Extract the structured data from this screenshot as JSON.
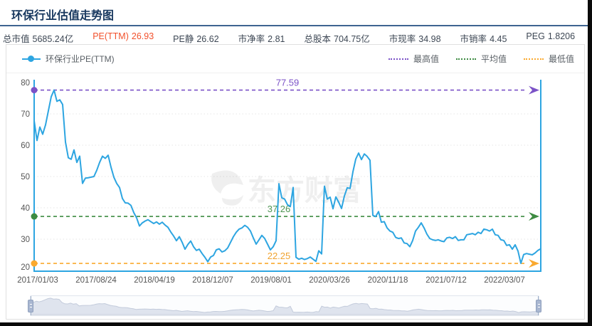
{
  "page": {
    "title": "环保行业估值走势图"
  },
  "stats": {
    "items": [
      {
        "label": "总市值",
        "value": "5685.24亿",
        "red": false
      },
      {
        "label": "PE(TTM)",
        "value": "26.93",
        "red": true
      },
      {
        "label": "PE静",
        "value": "26.62",
        "red": false
      },
      {
        "label": "市净率",
        "value": "2.81",
        "red": false
      },
      {
        "label": "总股本",
        "value": "704.75亿",
        "red": false
      },
      {
        "label": "市现率",
        "value": "34.98",
        "red": false
      },
      {
        "label": "市销率",
        "value": "4.45",
        "red": false
      },
      {
        "label": "PEG",
        "value": "1.8206",
        "red": false
      }
    ]
  },
  "legend": {
    "series_label": "环保行业PE(TTM)",
    "max_label": "最高值",
    "avg_label": "平均值",
    "min_label": "最低值"
  },
  "watermark": "东方财富",
  "chart_data": {
    "type": "line",
    "title": "环保行业估值走势图",
    "series_name": "环保行业PE(TTM)",
    "xlabel": "",
    "ylabel": "PE(TTM)",
    "ylim": [
      20,
      80
    ],
    "y_ticks": [
      20,
      30,
      40,
      50,
      60,
      70,
      80
    ],
    "x_tick_labels": [
      "2017/01/03",
      "2017/08/24",
      "2018/04/19",
      "2018/12/07",
      "2019/08/01",
      "2020/03/26",
      "2020/11/18",
      "2021/07/12",
      "2022/03/07"
    ],
    "grid": true,
    "legend_position": "top",
    "annotations": {
      "max": 77.59,
      "avg": 37.26,
      "min": 22.25
    },
    "last_value": 26.93,
    "values": [
      67.8,
      61.5,
      65.8,
      63.5,
      66.5,
      71,
      75.5,
      77.59,
      74,
      74.5,
      73,
      61,
      56,
      55.5,
      58.5,
      54.5,
      56.5,
      47.8,
      49.5,
      49.6,
      49.8,
      50,
      52,
      54.5,
      56.5,
      55.8,
      56.8,
      53,
      49.8,
      47.8,
      46.5,
      43,
      41.6,
      41.5,
      40.8,
      38.5,
      36.8,
      34.2,
      35.2,
      35.8,
      36.2,
      35.6,
      35,
      35.5,
      34.8,
      35.4,
      34.5,
      33.8,
      32.3,
      31,
      29.5,
      30.8,
      29,
      26.8,
      28.3,
      29.4,
      27.6,
      26.4,
      26.8,
      25.4,
      24.2,
      22.8,
      24.3,
      24.8,
      26.6,
      26.9,
      25.9,
      26.3,
      27.2,
      29,
      30.8,
      32.2,
      33.2,
      33.6,
      34.4,
      33.8,
      32.6,
      30.4,
      28.4,
      29.8,
      31.2,
      30.2,
      28.4,
      26.6,
      27.6,
      29.5,
      47.7,
      43.2,
      42.8,
      41,
      40.4,
      46.5,
      24.2,
      23.6,
      23.9,
      23.5,
      23.8,
      24.3,
      23.6,
      22.9,
      26.3,
      25.3,
      46.9,
      42.8,
      43.4,
      39.7,
      43.5,
      41.8,
      39.8,
      43.8,
      46.4,
      46.2,
      51.5,
      55.6,
      57.5,
      55.4,
      57.2,
      56.4,
      55.2,
      37.6,
      37.2,
      38.8,
      35.4,
      35.6,
      33.6,
      32.6,
      32.2,
      30.6,
      30.2,
      30.4,
      28.8,
      28.6,
      27.6,
      29.6,
      32.6,
      33.8,
      35.2,
      33.6,
      31.6,
      30.2,
      29.8,
      29.6,
      29.8,
      29.4,
      29.2,
      30.4,
      30.6,
      30.2,
      30.8,
      29.6,
      29.8,
      29.8,
      31.4,
      31.6,
      31.8,
      31.4,
      32.2,
      31.8,
      33.2,
      33,
      32.6,
      33.2,
      31.4,
      31.2,
      29.8,
      29.6,
      28,
      28.2,
      26.8,
      28.2,
      26.2,
      22.3,
      25.1,
      25.4,
      25.2,
      25,
      25.6,
      26.4,
      26.93
    ],
    "colors": {
      "series": "#2da5e1",
      "max_line": "#7b52c7",
      "avg_line": "#3d8b42",
      "min_line": "#faa92f",
      "axis": "#2da5e1",
      "grid": "#e6e6e6",
      "tick_text": "#555555"
    }
  }
}
